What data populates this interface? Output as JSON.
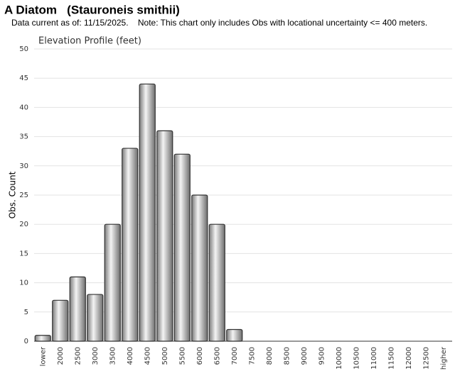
{
  "chart_data": {
    "type": "bar",
    "title": "A Diatom   (Stauroneis smithii)",
    "subtitle": "Data current as of: 11/15/2025.    Note: This chart only includes Obs with locational uncertainty <= 400 meters.",
    "plot_title": "Elevation Profile (feet)",
    "y_label": "Obs. Count",
    "categories": [
      "lower",
      "2000",
      "2500",
      "3000",
      "3500",
      "4000",
      "4500",
      "5000",
      "5500",
      "6000",
      "6500",
      "7000",
      "7500",
      "8000",
      "8500",
      "9000",
      "9500",
      "10000",
      "10500",
      "11000",
      "11500",
      "12000",
      "12500",
      "higher"
    ],
    "values": [
      1,
      7,
      11,
      8,
      20,
      33,
      44,
      36,
      32,
      25,
      20,
      2,
      0,
      0,
      0,
      0,
      0,
      0,
      0,
      0,
      0,
      0,
      0,
      0
    ],
    "color": "#b0b0b0",
    "ylim": [
      0,
      50
    ],
    "yticks": [
      0,
      5,
      10,
      15,
      20,
      25,
      30,
      35,
      40,
      45,
      50
    ],
    "grid": true
  }
}
